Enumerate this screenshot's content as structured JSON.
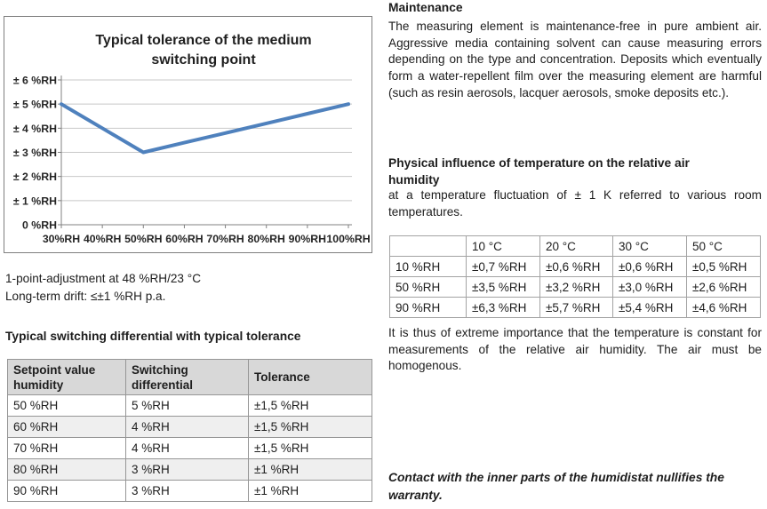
{
  "chart_data": {
    "type": "line",
    "title": "Typical tolerance of the medium switching point",
    "title_lines": [
      "Typical tolerance of the medium",
      "switching point"
    ],
    "categories": [
      "30%RH",
      "40%RH",
      "50%RH",
      "60%RH",
      "70%RH",
      "80%RH",
      "90%RH",
      "100%RH"
    ],
    "values": [
      5,
      4,
      3,
      3.4,
      3.8,
      4.2,
      4.6,
      5
    ],
    "ytick_values": [
      0,
      1,
      2,
      3,
      4,
      5,
      6
    ],
    "ytick_labels": [
      "0 %RH",
      "± 1 %RH",
      "± 2 %RH",
      "± 3 %RH",
      "± 4 %RH",
      "± 5 %RH",
      "± 6 %RH"
    ],
    "ylim": [
      0,
      6
    ],
    "xlabel": "",
    "ylabel": "",
    "grid": true,
    "legend": false,
    "line_color": "#4F81BD",
    "gridline_color": "#c8c8c8",
    "axis_color": "#808080",
    "label_color": "#262626"
  },
  "left_column": {
    "note1": "1-point-adjustment at 48 %RH/23 °C",
    "note2": "Long-term drift: ≤±1 %RH p.a.",
    "table_heading": "Typical switching differential with typical tolerance",
    "table": {
      "headers": [
        "Setpoint value humidity",
        "Switching differential",
        "Tolerance"
      ],
      "rows": [
        [
          "50 %RH",
          "5 %RH",
          "±1,5 %RH"
        ],
        [
          "60 %RH",
          "4 %RH",
          "±1,5 %RH"
        ],
        [
          "70 %RH",
          "4 %RH",
          "±1,5 %RH"
        ],
        [
          "80 %RH",
          "3 %RH",
          "±1 %RH"
        ],
        [
          "90 %RH",
          "3 %RH",
          "±1 %RH"
        ]
      ]
    }
  },
  "right_column": {
    "maintenance_heading": "Maintenance",
    "maintenance_text": "The measuring element is maintenance-free in pure ambient air. Aggressive media containing solvent can cause measu­ring errors depending on the type and concentration. Deposits which eventually form a water-repellent film over the measuring element are harmful (such as resin aerosols, lacquer aerosols, smoke deposits etc.).",
    "physical_heading": "Physical influence of temperature on the relative air humidity",
    "physical_sub": "at a temperature fluctuation of ± 1 K referred to various room temperatures.",
    "temp_table": {
      "headers": [
        "",
        "10 °C",
        "20 °C",
        "30 °C",
        "50 °C"
      ],
      "rows": [
        [
          "10 %RH",
          "±0,7 %RH",
          "±0,6 %RH",
          "±0,6 %RH",
          "±0,5 %RH"
        ],
        [
          "50 %RH",
          "±3,5 %RH",
          "±3,2 %RH",
          "±3,0 %RH",
          "±2,6 %RH"
        ],
        [
          "90 %RH",
          "±6,3 %RH",
          "±5,7 %RH",
          "±5,4 %RH",
          "±4,6 %RH"
        ]
      ]
    },
    "importance_text": "It is thus of extreme importance that the temperature is cons­tant for measurements of the relative air humidity. The air must be homogenous.",
    "warranty_text": "Contact with the inner parts of the humidistat nullifies the warranty."
  }
}
